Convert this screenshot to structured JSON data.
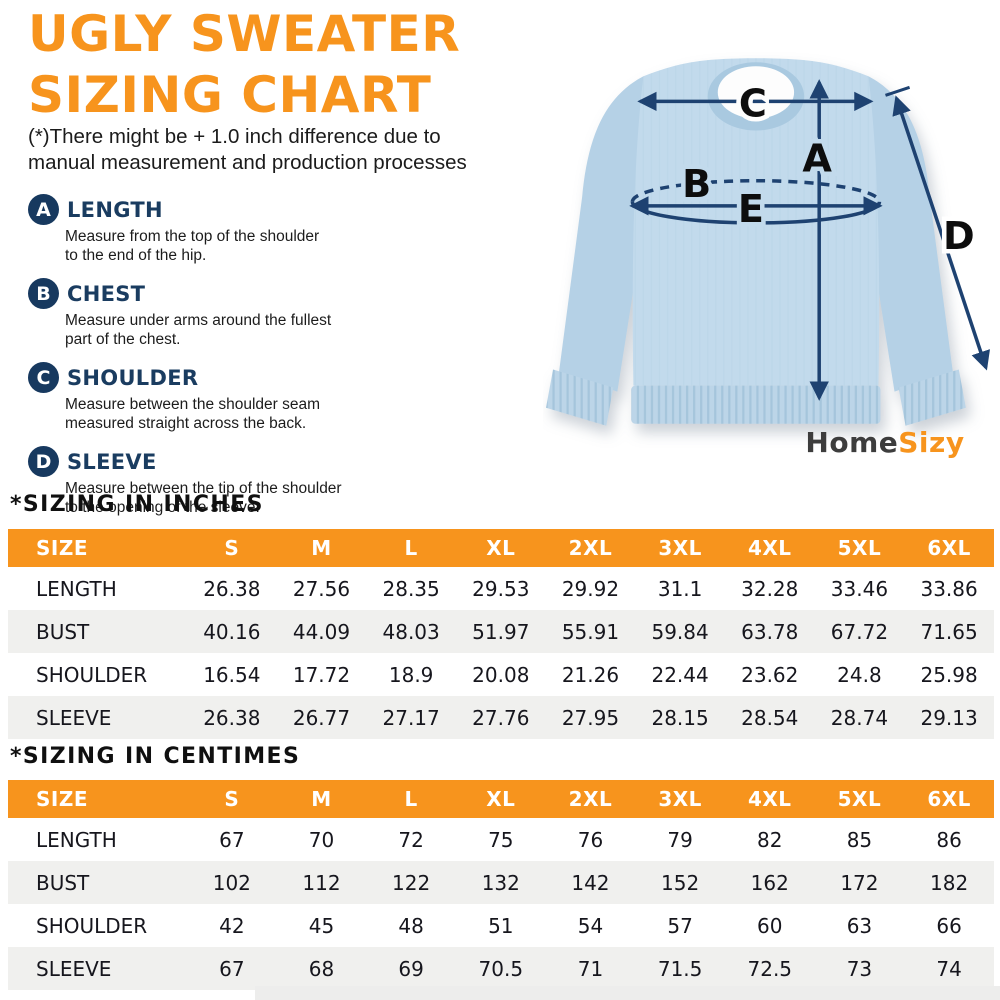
{
  "header": {
    "title_lines": [
      "UGLY SWEATER",
      "SIZING CHART"
    ],
    "disclaimer_lines": [
      "(*)There might be + 1.0 inch difference due to",
      "manual measurement and production processes"
    ]
  },
  "measurements": [
    {
      "letter": "A",
      "label": "LENGTH",
      "desc": [
        "Measure from the top of the shoulder",
        "to the end of the hip."
      ]
    },
    {
      "letter": "B",
      "label": "CHEST",
      "desc": [
        "Measure under arms around the fullest",
        "part of the chest."
      ]
    },
    {
      "letter": "C",
      "label": "SHOULDER",
      "desc": [
        "Measure between the shoulder seam",
        "measured straight across the back."
      ]
    },
    {
      "letter": "D",
      "label": "SLEEVE",
      "desc": [
        "Measure between the tip of the shoulder",
        "to the opening of the sleeve."
      ]
    }
  ],
  "diagram": {
    "arrow_labels": {
      "length": "A",
      "chest": "B",
      "shoulder": "C",
      "sleeve": "D",
      "width": "E"
    },
    "brand": {
      "part1": "Home",
      "part2": "Sizy"
    }
  },
  "tables": [
    {
      "heading": "*SIZING IN INCHES",
      "columns": [
        "SIZE",
        "S",
        "M",
        "L",
        "XL",
        "2XL",
        "3XL",
        "4XL",
        "5XL",
        "6XL"
      ],
      "rows": [
        {
          "label": "LENGTH",
          "values": [
            "26.38",
            "27.56",
            "28.35",
            "29.53",
            "29.92",
            "31.1",
            "32.28",
            "33.46",
            "33.86"
          ]
        },
        {
          "label": "BUST",
          "values": [
            "40.16",
            "44.09",
            "48.03",
            "51.97",
            "55.91",
            "59.84",
            "63.78",
            "67.72",
            "71.65"
          ]
        },
        {
          "label": "SHOULDER",
          "values": [
            "16.54",
            "17.72",
            "18.9",
            "20.08",
            "21.26",
            "22.44",
            "23.62",
            "24.8",
            "25.98"
          ]
        },
        {
          "label": "SLEEVE",
          "values": [
            "26.38",
            "26.77",
            "27.17",
            "27.76",
            "27.95",
            "28.15",
            "28.54",
            "28.74",
            "29.13"
          ]
        }
      ]
    },
    {
      "heading": "*SIZING IN CENTIMES",
      "columns": [
        "SIZE",
        "S",
        "M",
        "L",
        "XL",
        "2XL",
        "3XL",
        "4XL",
        "5XL",
        "6XL"
      ],
      "rows": [
        {
          "label": "LENGTH",
          "values": [
            "67",
            "70",
            "72",
            "75",
            "76",
            "79",
            "82",
            "85",
            "86"
          ]
        },
        {
          "label": "BUST",
          "values": [
            "102",
            "112",
            "122",
            "132",
            "142",
            "152",
            "162",
            "172",
            "182"
          ]
        },
        {
          "label": "SHOULDER",
          "values": [
            "42",
            "45",
            "48",
            "51",
            "54",
            "57",
            "60",
            "63",
            "66"
          ]
        },
        {
          "label": "SLEEVE",
          "values": [
            "67",
            "68",
            "69",
            "70.5",
            "71",
            "71.5",
            "72.5",
            "73",
            "74"
          ]
        }
      ]
    }
  ],
  "colors": {
    "accent_orange": "#F7941D",
    "navy": "#17395F",
    "arrow_navy": "#1E4271",
    "sweater_blue": "#C2DAEC",
    "row_stripe": "#F0F0EE",
    "brand_gray": "#3D3D3D"
  }
}
